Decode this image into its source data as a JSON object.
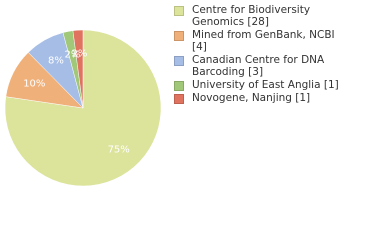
{
  "chart_data": {
    "type": "pie",
    "categories": [
      "Centre for Biodiversity Genomics [28]",
      "Mined from GenBank, NCBI [4]",
      "Canadian Centre for DNA Barcoding [3]",
      "University of East Anglia [1]",
      "Novogene, Nanjing [1]"
    ],
    "values": [
      75,
      10,
      8,
      2,
      2
    ],
    "value_labels": [
      "75%",
      "10%",
      "8%",
      "2%",
      "2%"
    ],
    "colors": [
      "#dce39b",
      "#f0b07a",
      "#a6bde6",
      "#a0c878",
      "#e0735f"
    ]
  }
}
